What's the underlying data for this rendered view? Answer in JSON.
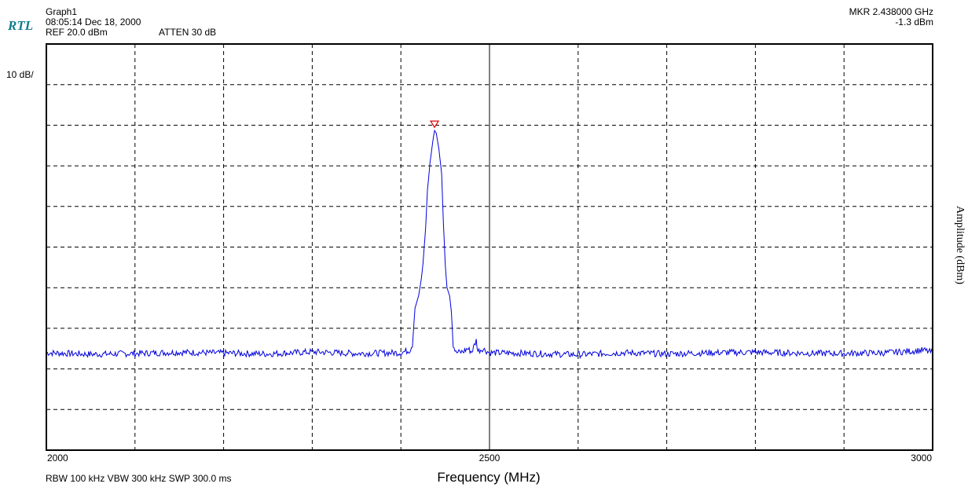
{
  "header": {
    "logo_text": "RTL",
    "graph_name": "Graph1",
    "timestamp": "08:05:14 Dec 18, 2000",
    "ref_level": "REF 20.0 dBm",
    "attenuation": "ATTEN 30 dB",
    "marker_freq": "MKR  2.438000 GHz",
    "marker_amp": "-1.3 dBm"
  },
  "scale_label": "10 dB/",
  "footer": {
    "bandwidth_info": "RBW 100 kHz  VBW 300 kHz   SWP 300.0 ms"
  },
  "colors": {
    "trace": "#0000dd",
    "marker": "#e00000",
    "logo": "#0e7e8c",
    "grid": "#000000"
  },
  "chart_data": {
    "type": "line",
    "title": "",
    "xlabel": "Frequency (MHz)",
    "ylabel": "Amplitude (dBm)",
    "xlim": [
      2000,
      3000
    ],
    "ylim": [
      -80,
      20
    ],
    "x_tick_labels": [
      "2000",
      "2500",
      "3000"
    ],
    "x_divisions": 10,
    "y_divisions": 10,
    "grid": true,
    "noise_floor_dbm": -56,
    "series": [
      {
        "points": [
          [
            2000,
            -56.0
          ],
          [
            2050,
            -56.4
          ],
          [
            2100,
            -56.2
          ],
          [
            2150,
            -55.9
          ],
          [
            2200,
            -56.1
          ],
          [
            2250,
            -56.3
          ],
          [
            2300,
            -55.8
          ],
          [
            2350,
            -56.2
          ],
          [
            2400,
            -56.0
          ],
          [
            2410,
            -55.4
          ],
          [
            2413,
            -54.0
          ],
          [
            2416,
            -45.0
          ],
          [
            2420,
            -42.0
          ],
          [
            2423,
            -38.0
          ],
          [
            2425,
            -34.0
          ],
          [
            2428,
            -25.0
          ],
          [
            2430,
            -16.0
          ],
          [
            2433,
            -9.0
          ],
          [
            2436,
            -4.0
          ],
          [
            2438,
            -1.3
          ],
          [
            2440,
            -2.0
          ],
          [
            2443,
            -6.0
          ],
          [
            2446,
            -12.0
          ],
          [
            2448,
            -24.0
          ],
          [
            2450,
            -34.0
          ],
          [
            2452,
            -40.0
          ],
          [
            2455,
            -42.0
          ],
          [
            2457,
            -46.0
          ],
          [
            2459,
            -54.0
          ],
          [
            2462,
            -56.0
          ],
          [
            2470,
            -55.8
          ],
          [
            2475,
            -55.0
          ],
          [
            2480,
            -55.8
          ],
          [
            2485,
            -53.0
          ],
          [
            2487,
            -55.6
          ],
          [
            2492,
            -55.0
          ],
          [
            2500,
            -56.0
          ],
          [
            2550,
            -56.2
          ],
          [
            2600,
            -56.5
          ],
          [
            2650,
            -56.0
          ],
          [
            2700,
            -56.3
          ],
          [
            2750,
            -56.0
          ],
          [
            2800,
            -55.9
          ],
          [
            2850,
            -56.1
          ],
          [
            2900,
            -56.2
          ],
          [
            2950,
            -56.0
          ],
          [
            2990,
            -55.4
          ],
          [
            3000,
            -56.0
          ]
        ]
      }
    ],
    "marker": {
      "x": 2438,
      "y": -1.3
    }
  }
}
